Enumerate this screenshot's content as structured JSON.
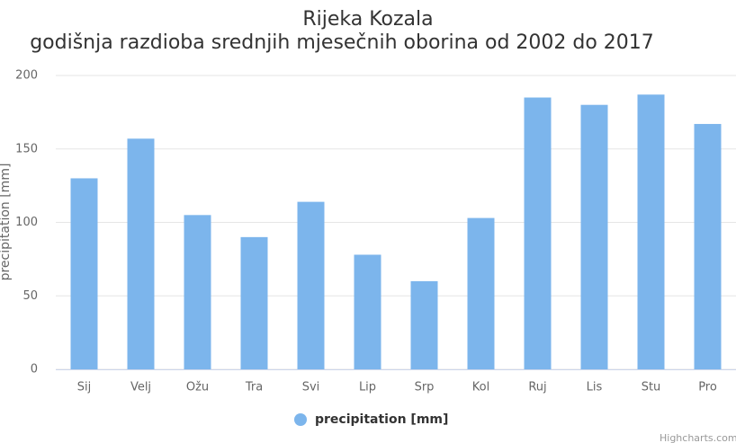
{
  "chart_data": {
    "type": "bar",
    "title": "Rijeka Kozala",
    "subtitle": "godišnja razdioba srednjih mjesečnih oborina od 2002 do 2017",
    "y_axis_label": "precipitation [mm]",
    "categories": [
      "Sij",
      "Velj",
      "Ožu",
      "Tra",
      "Svi",
      "Lip",
      "Srp",
      "Kol",
      "Ruj",
      "Lis",
      "Stu",
      "Pro"
    ],
    "series": [
      {
        "name": "precipitation [mm]",
        "color": "#7cb5ec",
        "values": [
          130,
          157,
          105,
          90,
          114,
          78,
          60,
          103,
          185,
          180,
          187,
          167
        ]
      }
    ],
    "ylim": [
      0,
      200
    ],
    "yticks": [
      0,
      50,
      100,
      150,
      200
    ],
    "grid": true,
    "legend": "bottom",
    "credits": "Highcharts.com"
  }
}
